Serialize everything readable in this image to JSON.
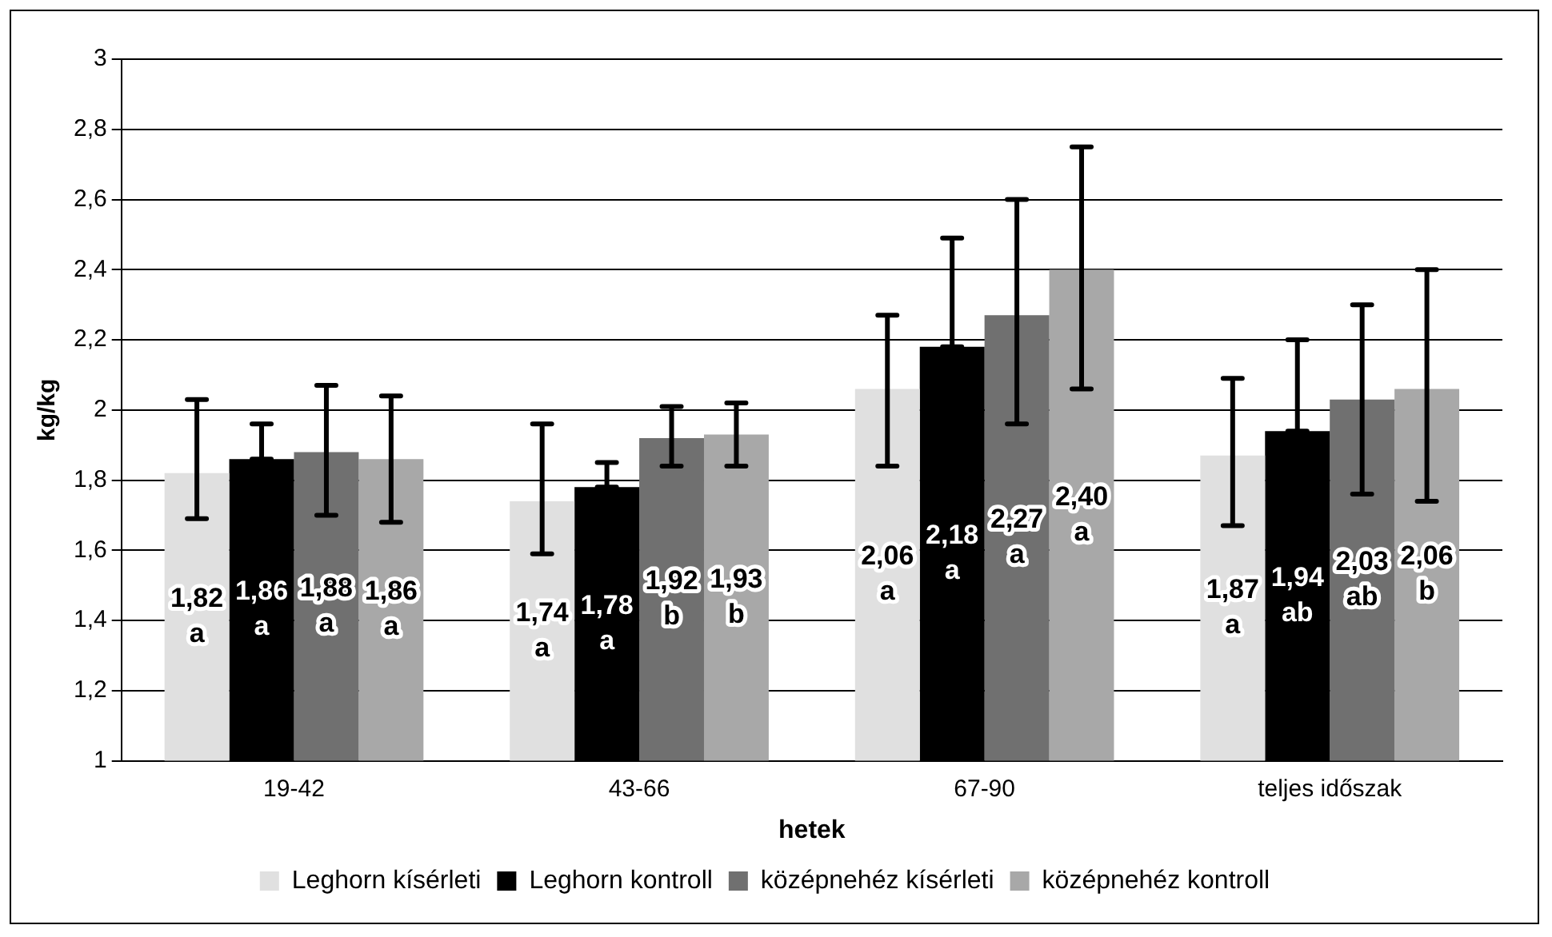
{
  "chart_data": {
    "type": "bar",
    "xlabel": "hetek",
    "ylabel": "kg/kg",
    "categories": [
      "19-42",
      "43-66",
      "67-90",
      "teljes időszak"
    ],
    "series": [
      {
        "name": "Leghorn kísérleti",
        "color": "#e0e0e0",
        "values": [
          1.82,
          1.74,
          2.06,
          1.87
        ],
        "errors": [
          [
            1.69,
            2.03
          ],
          [
            1.59,
            1.96
          ],
          [
            1.84,
            2.27
          ],
          [
            1.67,
            2.09
          ]
        ],
        "value_labels": [
          "1,82\na",
          "1,74\na",
          "2,06\na",
          "1,87\na"
        ]
      },
      {
        "name": "Leghorn kontroll",
        "color": "#000000",
        "values": [
          1.86,
          1.78,
          2.18,
          1.94
        ],
        "errors": [
          [
            1.86,
            1.96
          ],
          [
            1.78,
            1.85
          ],
          [
            2.18,
            2.49
          ],
          [
            1.94,
            2.2
          ]
        ],
        "value_labels": [
          "1,86\na",
          "1,78\na",
          "2,18\na",
          "1,94\nab"
        ]
      },
      {
        "name": "középnehéz kísérleti",
        "color": "#707070",
        "values": [
          1.88,
          1.92,
          2.27,
          2.03
        ],
        "errors": [
          [
            1.7,
            2.07
          ],
          [
            1.84,
            2.01
          ],
          [
            1.96,
            2.6
          ],
          [
            1.76,
            2.3
          ]
        ],
        "value_labels": [
          "1,88\na",
          "1,92\nb",
          "2,27\na",
          "2,03\nab"
        ]
      },
      {
        "name": "középnehéz kontroll",
        "color": "#a8a8a8",
        "values": [
          1.86,
          1.93,
          2.4,
          2.06
        ],
        "errors": [
          [
            1.68,
            2.04
          ],
          [
            1.84,
            2.02
          ],
          [
            2.06,
            2.75
          ],
          [
            1.74,
            2.4
          ]
        ],
        "value_labels": [
          "1,86\na",
          "1,93\nb",
          "2,40\na",
          "2,06\nb"
        ]
      }
    ],
    "ylim": [
      1,
      3
    ],
    "yticks": [
      {
        "value": 1,
        "label": "1"
      },
      {
        "value": 1.2,
        "label": "1,2"
      },
      {
        "value": 1.4,
        "label": "1,4"
      },
      {
        "value": 1.6,
        "label": "1,6"
      },
      {
        "value": 1.8,
        "label": "1,8"
      },
      {
        "value": 2,
        "label": "2"
      },
      {
        "value": 2.2,
        "label": "2,2"
      },
      {
        "value": 2.4,
        "label": "2,4"
      },
      {
        "value": 2.6,
        "label": "2,6"
      },
      {
        "value": 2.8,
        "label": "2,8"
      },
      {
        "value": 3,
        "label": "3"
      }
    ],
    "grid": "y",
    "legend": "bottom"
  }
}
